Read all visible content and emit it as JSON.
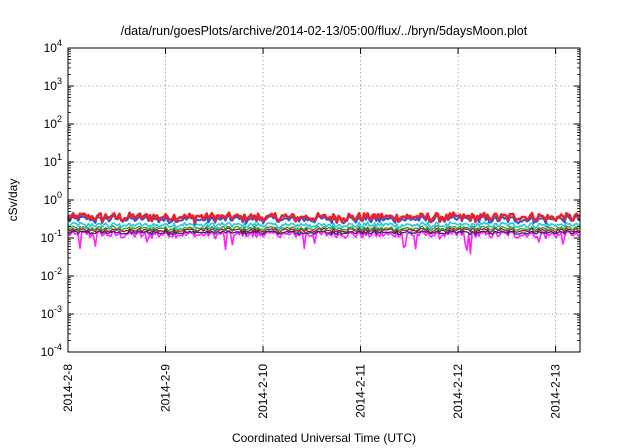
{
  "chart_data": {
    "type": "line",
    "title": "/data/run/goesPlots/archive/2014-02-13/05:00/flux/../bryn/5daysMoon.plot",
    "xlabel": "Coordinated Universal Time (UTC)",
    "ylabel": "cSv/day",
    "yscale": "log",
    "ylim": [
      0.0001,
      10000
    ],
    "xlim": [
      "2014-02-08 00:00",
      "2014-02-13 06:00"
    ],
    "grid": true,
    "y_ticks": [
      {
        "value": 0.0001,
        "base": "10",
        "exp": "-4"
      },
      {
        "value": 0.001,
        "base": "10",
        "exp": "-3"
      },
      {
        "value": 0.01,
        "base": "10",
        "exp": "-2"
      },
      {
        "value": 0.1,
        "base": "10",
        "exp": "-1"
      },
      {
        "value": 1,
        "base": "10",
        "exp": "0"
      },
      {
        "value": 10,
        "base": "10",
        "exp": "1"
      },
      {
        "value": 100,
        "base": "10",
        "exp": "2"
      },
      {
        "value": 1000,
        "base": "10",
        "exp": "3"
      },
      {
        "value": 10000,
        "base": "10",
        "exp": "4"
      }
    ],
    "x_ticks": [
      {
        "value": "2014-02-08",
        "label": "2014-2-8"
      },
      {
        "value": "2014-02-09",
        "label": "2014-2-9"
      },
      {
        "value": "2014-02-10",
        "label": "2014-2-10"
      },
      {
        "value": "2014-02-11",
        "label": "2014-2-11"
      },
      {
        "value": "2014-02-12",
        "label": "2014-2-12"
      },
      {
        "value": "2014-02-13",
        "label": "2014-2-13"
      }
    ],
    "series": [
      {
        "color": "#e8232a",
        "base": 0.36,
        "amp": 0.32,
        "width": 2.6
      },
      {
        "color": "#2b55e0",
        "base": 0.31,
        "amp": 0.3,
        "width": 2.0
      },
      {
        "color": "#22c8e0",
        "base": 0.22,
        "amp": 0.22,
        "width": 1.6
      },
      {
        "color": "#2e9e3a",
        "base": 0.18,
        "amp": 0.18,
        "width": 1.3
      },
      {
        "color": "#f2f2a0",
        "base": 0.19,
        "amp": 0.15,
        "width": 1.3
      },
      {
        "color": "#a01030",
        "base": 0.16,
        "amp": 0.18,
        "width": 1.3
      },
      {
        "color": "#2a2a6a",
        "base": 0.14,
        "amp": 0.16,
        "width": 1.3
      },
      {
        "color": "#ff20ff",
        "base": 0.125,
        "amp": 0.28,
        "width": 1.6,
        "spiky": true
      }
    ]
  }
}
